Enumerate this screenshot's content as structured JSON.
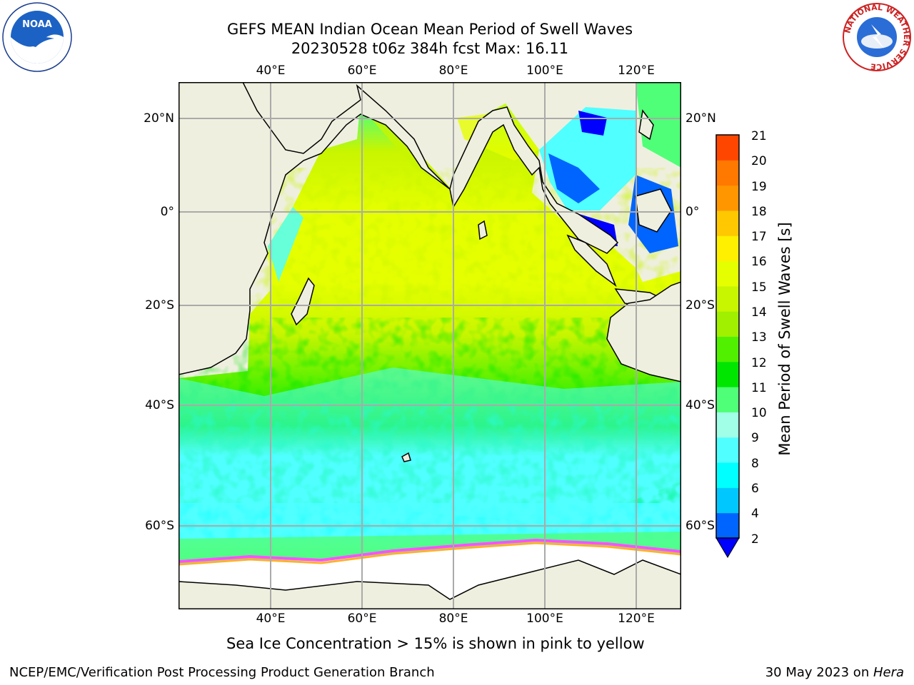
{
  "title": {
    "line1": "GEFS MEAN Indian Ocean Mean Period of Swell Waves",
    "line2": "20230528 t06z 384h fcst   Max: 16.11"
  },
  "logos": {
    "left": {
      "icon": "noaa-logo",
      "text": "NOAA"
    },
    "right": {
      "icon": "nws-logo",
      "ring_text": "NATIONAL WEATHER SERVICE"
    }
  },
  "map": {
    "lon_labels": [
      "40°E",
      "60°E",
      "80°E",
      "100°E",
      "120°E"
    ],
    "lat_labels": [
      "20°N",
      "0°",
      "20°S",
      "40°S",
      "60°S"
    ]
  },
  "colorbar": {
    "label": "Mean Period of Swell Waves [s]",
    "ticks": [
      "2",
      "4",
      "6",
      "8",
      "9",
      "10",
      "11",
      "12",
      "13",
      "14",
      "15",
      "16",
      "17",
      "18",
      "19",
      "20",
      "21"
    ],
    "colors": [
      "#0064ff",
      "#00c8ff",
      "#00ffff",
      "#50ffff",
      "#a0ffe6",
      "#50ff78",
      "#00e600",
      "#50f000",
      "#a0f000",
      "#c8f500",
      "#e6ff00",
      "#fff000",
      "#ffc800",
      "#ff9600",
      "#ff7800",
      "#ff4600",
      "#ff0000"
    ],
    "extend_color": "#0000ff"
  },
  "caption": "Sea Ice Concentration > 15% is shown in pink to yellow",
  "footer": {
    "left": "NCEP/EMC/Verification Post Processing Product Generation Branch",
    "right_prefix": "30 May 2023 on ",
    "right_host": "Hera"
  }
}
